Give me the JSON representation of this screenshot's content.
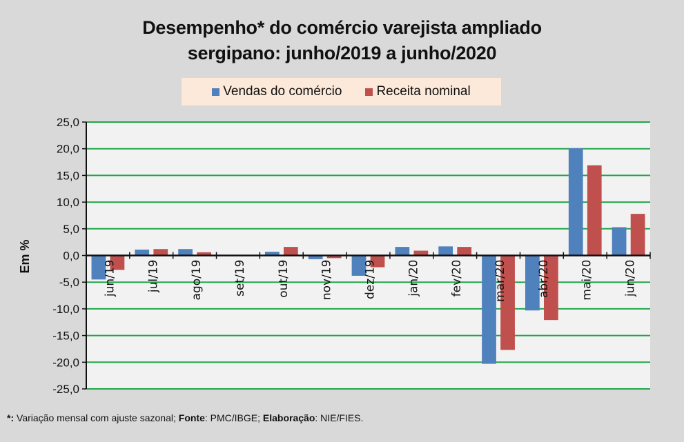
{
  "chart_data": {
    "type": "bar",
    "title_lines": [
      "Desempenho* do comércio varejista ampliado",
      "sergipano: junho/2019 a junho/2020"
    ],
    "title": "Desempenho* do comércio varejista ampliado sergipano: junho/2019 a junho/2020",
    "xlabel": "",
    "ylabel": "Em %",
    "ylim": [
      -25,
      25
    ],
    "yticks": [
      25,
      20,
      15,
      10,
      5,
      0,
      -5,
      -10,
      -15,
      -20,
      -25
    ],
    "ytick_labels": [
      "25,0",
      "20,0",
      "15,0",
      "10,0",
      "5,0",
      "0,0",
      "-5,0",
      "-10,0",
      "-15,0",
      "-20,0",
      "-25,0"
    ],
    "grid": true,
    "legend_position": "top-center",
    "categories": [
      "jun/19",
      "jul/19",
      "ago/19",
      "set/19",
      "out/19",
      "nov/19",
      "dez/19",
      "jan/20",
      "fev/20",
      "mar/20",
      "abr/20",
      "mai/20",
      "jun/20"
    ],
    "series": [
      {
        "name": "Vendas do comércio",
        "color": "#4f81bd",
        "values": [
          -4.5,
          1.1,
          1.2,
          0.0,
          0.7,
          -0.7,
          -3.8,
          1.6,
          1.7,
          -20.3,
          -10.3,
          20.1,
          5.3
        ]
      },
      {
        "name": "Receita nominal",
        "color": "#c0504d",
        "values": [
          -2.7,
          1.2,
          0.6,
          0.0,
          1.6,
          -0.5,
          -2.2,
          0.9,
          1.6,
          -17.7,
          -12.1,
          16.9,
          7.8
        ]
      }
    ],
    "gridline_color": "#1fa64a",
    "plot_background": "#f2f2f2"
  },
  "legend": {
    "items": [
      {
        "label": "Vendas do comércio",
        "color": "#4f81bd"
      },
      {
        "label": "Receita nominal",
        "color": "#c0504d"
      }
    ]
  },
  "footnote": {
    "star": "*:",
    "star_text": " Variação mensal com ajuste sazonal; ",
    "fonte_label": "Fonte",
    "fonte_text": ": PMC/IBGE; ",
    "elab_label": "Elaboração",
    "elab_text": ": NIE/FIES."
  }
}
